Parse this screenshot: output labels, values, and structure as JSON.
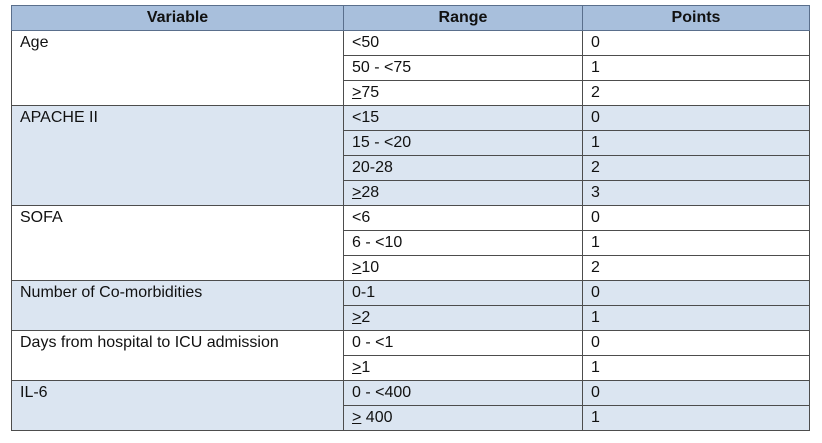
{
  "table": {
    "headers": {
      "variable": "Variable",
      "range": "Range",
      "points": "Points"
    },
    "groups": [
      {
        "variable": "Age",
        "rows": [
          {
            "range_prefix": "",
            "range": "<50",
            "points": "0"
          },
          {
            "range_prefix": "",
            "range": "50 - <75",
            "points": "1"
          },
          {
            "range_prefix": ">",
            "range": "75",
            "points": "2"
          }
        ]
      },
      {
        "variable": "APACHE II",
        "rows": [
          {
            "range_prefix": "",
            "range": "<15",
            "points": "0"
          },
          {
            "range_prefix": "",
            "range": "15 - <20",
            "points": "1"
          },
          {
            "range_prefix": "",
            "range": "20-28",
            "points": "2"
          },
          {
            "range_prefix": ">",
            "range": "28",
            "points": "3"
          }
        ]
      },
      {
        "variable": "SOFA",
        "rows": [
          {
            "range_prefix": "",
            "range": "<6",
            "points": "0"
          },
          {
            "range_prefix": "",
            "range": "6 - <10",
            "points": "1"
          },
          {
            "range_prefix": ">",
            "range": "10",
            "points": "2"
          }
        ]
      },
      {
        "variable": "Number of Co-morbidities",
        "rows": [
          {
            "range_prefix": "",
            "range": "0-1",
            "points": "0"
          },
          {
            "range_prefix": ">",
            "range": "2",
            "points": "1"
          }
        ]
      },
      {
        "variable": "Days from hospital to ICU admission",
        "rows": [
          {
            "range_prefix": "",
            "range": "0 - <1",
            "points": "0"
          },
          {
            "range_prefix": ">",
            "range": "1",
            "points": "1"
          }
        ]
      },
      {
        "variable": "IL-6",
        "rows": [
          {
            "range_prefix": "",
            "range": "0 - <400",
            "points": "0"
          },
          {
            "range_prefix": ">",
            "range": " 400",
            "points": "1"
          }
        ]
      }
    ]
  }
}
